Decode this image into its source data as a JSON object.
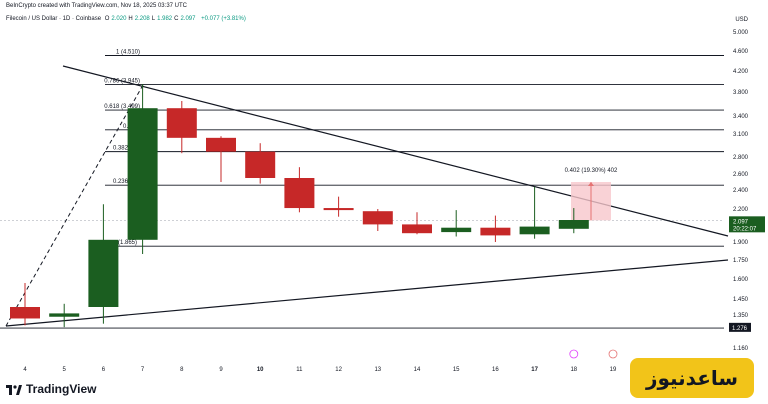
{
  "header": {
    "credit": "BeInCrypto created with TradingView.com, Nov 18, 2025 03:37 UTC",
    "symbol": "Filecoin / US Dollar · 1D · Coinbase",
    "ohlc": [
      {
        "label": "O",
        "value": "2.020"
      },
      {
        "label": "H",
        "value": "2.208"
      },
      {
        "label": "L",
        "value": "1.982"
      },
      {
        "label": "C",
        "value": "2.097"
      }
    ],
    "change": "+0.077 (+3.81%)",
    "currency": "USD"
  },
  "colors": {
    "up": "#1b5e20",
    "down": "#c62828",
    "axis_text": "#131722",
    "price_tag": "#1b5e20",
    "measure_fill": "#f8c7cc",
    "measure_line": "#e57373",
    "watermark_bg": "#f2c419"
  },
  "chart_data": {
    "type": "candlestick",
    "categories": [
      "4",
      "5",
      "6",
      "7",
      "8",
      "9",
      "10",
      "11",
      "12",
      "13",
      "14",
      "15",
      "16",
      "17",
      "18",
      "19"
    ],
    "candles": [
      {
        "x": "4",
        "o": 1.4,
        "h": 1.57,
        "l": 1.29,
        "c": 1.33
      },
      {
        "x": "5",
        "o": 1.34,
        "h": 1.42,
        "l": 1.28,
        "c": 1.36
      },
      {
        "x": "6",
        "o": 1.4,
        "h": 2.25,
        "l": 1.3,
        "c": 1.92
      },
      {
        "x": "7",
        "o": 1.92,
        "h": 3.95,
        "l": 1.8,
        "c": 3.53
      },
      {
        "x": "8",
        "o": 3.53,
        "h": 3.65,
        "l": 2.85,
        "c": 3.05
      },
      {
        "x": "9",
        "o": 3.05,
        "h": 3.07,
        "l": 2.5,
        "c": 2.87
      },
      {
        "x": "10",
        "o": 2.87,
        "h": 2.98,
        "l": 2.48,
        "c": 2.55
      },
      {
        "x": "11",
        "o": 2.55,
        "h": 2.68,
        "l": 2.17,
        "c": 2.21
      },
      {
        "x": "12",
        "o": 2.21,
        "h": 2.33,
        "l": 2.13,
        "c": 2.19
      },
      {
        "x": "13",
        "o": 2.18,
        "h": 2.2,
        "l": 2.0,
        "c": 2.06
      },
      {
        "x": "14",
        "o": 2.06,
        "h": 2.17,
        "l": 1.97,
        "c": 1.98
      },
      {
        "x": "15",
        "o": 1.99,
        "h": 2.19,
        "l": 1.95,
        "c": 2.03
      },
      {
        "x": "16",
        "o": 2.03,
        "h": 2.14,
        "l": 1.9,
        "c": 1.96
      },
      {
        "x": "17",
        "o": 1.97,
        "h": 2.44,
        "l": 1.93,
        "c": 2.04
      },
      {
        "x": "18",
        "o": 2.02,
        "h": 2.21,
        "l": 1.98,
        "c": 2.1
      }
    ],
    "y_axis_ticks": [
      "5.000",
      "4.600",
      "4.200",
      "3.800",
      "3.400",
      "3.100",
      "2.800",
      "2.600",
      "2.400",
      "2.200",
      "1.900",
      "1.750",
      "1.600",
      "1.450",
      "1.350"
    ],
    "price_ticks_values": [
      5.0,
      4.6,
      4.2,
      3.8,
      3.4,
      3.1,
      2.8,
      2.6,
      2.4,
      2.2,
      1.9,
      1.75,
      1.6,
      1.45,
      1.35
    ],
    "x_axis_ticks": [
      "4",
      "5",
      "6",
      "7",
      "8",
      "9",
      "10",
      "11",
      "12",
      "13",
      "14",
      "15",
      "16",
      "17",
      "18",
      "19"
    ],
    "bold_x_ticks": [
      "10",
      "17"
    ],
    "fib_levels": [
      {
        "label": "1 (4.510)",
        "value": 4.51
      },
      {
        "label": "0.786 (3.945)",
        "value": 3.945
      },
      {
        "label": "0.618 (3.499)",
        "value": 3.499
      },
      {
        "label": "0.5 (3.",
        "value": 3.17
      },
      {
        "label": "0.382 (2.8",
        "value": 2.87
      },
      {
        "label": "0.236 (2.4",
        "value": 2.46
      },
      {
        "label": "(1.865)",
        "value": 1.865
      },
      {
        "label": "",
        "value": 1.275
      }
    ],
    "current_price": {
      "value": "2.097",
      "timer": "20:22:07",
      "numeric": 2.097
    },
    "level_tag": {
      "value": "1.276",
      "numeric": 1.276
    },
    "bottom_tick": "1.160",
    "measure": {
      "label": "0.402 (19.30%) 402",
      "from": 2.097,
      "to": 2.5,
      "percent": 19.3
    },
    "trendlines": [
      {
        "name": "upper",
        "from": {
          "x": "4",
          "y": 4.4
        },
        "to": {
          "x": "19+",
          "y": 1.95
        }
      },
      {
        "name": "lower",
        "from": {
          "x": "4",
          "y": 1.275
        },
        "to": {
          "x": "19+",
          "y": 1.75
        }
      }
    ],
    "ylim": [
      1.16,
      5.05
    ],
    "grid": false
  },
  "branding": {
    "logo_text": "TradingView",
    "watermark_text": "ساعدنیوز"
  }
}
